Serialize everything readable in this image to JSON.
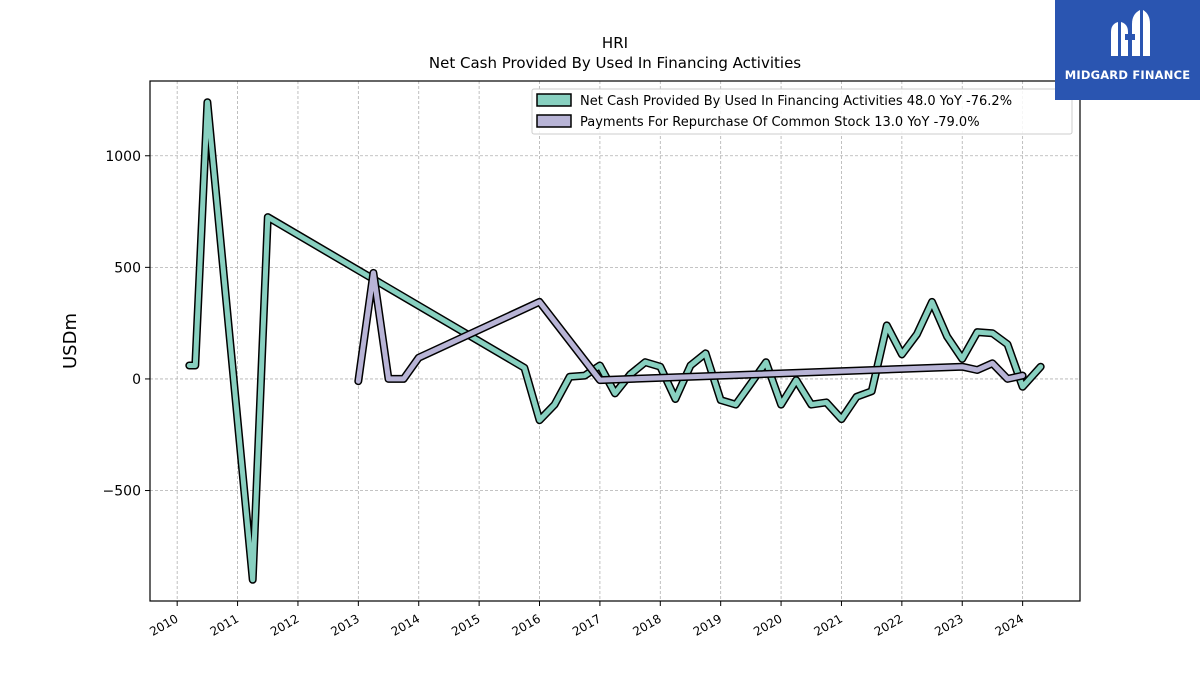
{
  "logo": {
    "text": "MIDGARD FINANCE"
  },
  "chart_data": {
    "type": "line",
    "title": "HRI",
    "subtitle": "Net Cash Provided By Used In Financing Activities",
    "ylabel": "USDm",
    "xlabel": "",
    "xlim": [
      2009.55,
      2024.95
    ],
    "ylim": [
      -995,
      1335
    ],
    "x_ticks": [
      2010,
      2011,
      2012,
      2013,
      2014,
      2015,
      2016,
      2017,
      2018,
      2019,
      2020,
      2021,
      2022,
      2023,
      2024
    ],
    "x_tick_labels": [
      "2010",
      "2011",
      "2012",
      "2013",
      "2014",
      "2015",
      "2016",
      "2017",
      "2018",
      "2019",
      "2020",
      "2021",
      "2022",
      "2023",
      "2024"
    ],
    "y_ticks": [
      -500,
      0,
      500,
      1000
    ],
    "y_tick_labels": [
      "−500",
      "0",
      "500",
      "1000"
    ],
    "grid": true,
    "legend_position": "top-right",
    "series": [
      {
        "name": "Net Cash Provided By Used In Financing Activities",
        "legend_label": "Net Cash Provided By Used In Financing Activities  48.0 YoY -76.2%",
        "color": "#88d0c0",
        "x": [
          2010.2,
          2010.3,
          2010.5,
          2011.25,
          2011.5,
          2015.75,
          2016.0,
          2016.25,
          2016.5,
          2016.75,
          2017.0,
          2017.25,
          2017.5,
          2017.75,
          2018.0,
          2018.25,
          2018.5,
          2018.75,
          2019.0,
          2019.25,
          2019.5,
          2019.75,
          2020.0,
          2020.25,
          2020.5,
          2020.75,
          2021.0,
          2021.25,
          2021.5,
          2021.75,
          2022.0,
          2022.25,
          2022.5,
          2022.75,
          2023.0,
          2023.25,
          2023.5,
          2023.75,
          2024.0,
          2024.3
        ],
        "y": [
          60,
          60,
          1240,
          -900,
          725,
          50,
          -185,
          -115,
          10,
          15,
          60,
          -65,
          20,
          75,
          55,
          -90,
          60,
          115,
          -95,
          -115,
          -20,
          75,
          -115,
          -5,
          -115,
          -105,
          -180,
          -80,
          -55,
          240,
          110,
          200,
          345,
          190,
          90,
          210,
          205,
          155,
          -35,
          55
        ]
      },
      {
        "name": "Payments For Repurchase Of Common Stock",
        "legend_label": "Payments For Repurchase Of Common Stock  13.0 YoY -79.0%",
        "color": "#b8b4d6",
        "x": [
          2013.0,
          2013.25,
          2013.5,
          2013.75,
          2014.0,
          2016.0,
          2017.0,
          2023.0,
          2023.25,
          2023.5,
          2023.75,
          2024.0
        ],
        "y": [
          -10,
          475,
          0,
          0,
          95,
          345,
          -5,
          55,
          40,
          70,
          0,
          15
        ]
      }
    ]
  }
}
